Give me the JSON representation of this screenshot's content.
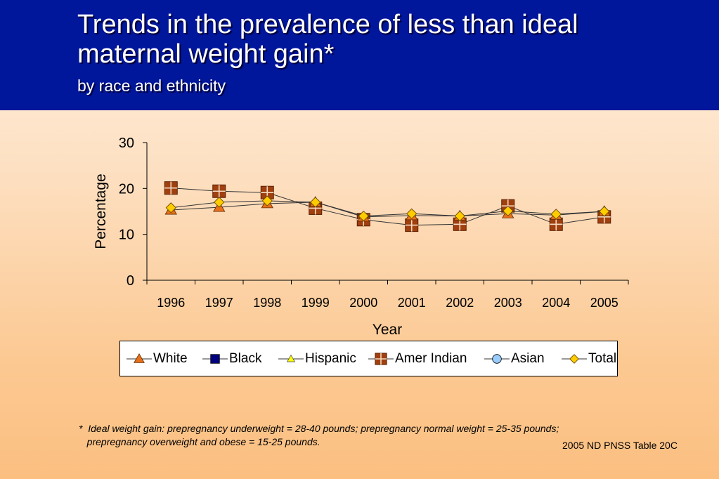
{
  "header": {
    "title": "Trends in the prevalence of less than ideal maternal weight gain*",
    "subtitle": "by race and ethnicity"
  },
  "chart_data": {
    "type": "line",
    "title": "Trends in the prevalence of less than ideal maternal weight gain*",
    "subtitle": "by race and ethnicity",
    "xlabel": "Year",
    "ylabel": "Percentage",
    "ylim": [
      0,
      30
    ],
    "yticks": [
      "0",
      "10",
      "20",
      "30"
    ],
    "categories": [
      "1996",
      "1997",
      "1998",
      "1999",
      "2000",
      "2001",
      "2002",
      "2003",
      "2004",
      "2005"
    ],
    "legend_position": "bottom",
    "series": [
      {
        "name": "White",
        "color": "#e8701a",
        "marker": "triangle",
        "values": [
          15.3,
          15.9,
          16.7,
          17.0,
          13.8,
          14.1,
          14.0,
          14.5,
          14.2,
          15.0
        ]
      },
      {
        "name": "Black",
        "color": "#000080",
        "marker": "square",
        "values": [
          null,
          null,
          null,
          null,
          null,
          null,
          null,
          null,
          null,
          null
        ]
      },
      {
        "name": "Hispanic",
        "color": "#ffff00",
        "marker": "small-triangle",
        "values": [
          null,
          null,
          null,
          null,
          null,
          null,
          null,
          null,
          null,
          null
        ]
      },
      {
        "name": "Amer Indian",
        "color": "#a0400f",
        "marker": "square-cross",
        "values": [
          20.1,
          19.4,
          19.1,
          15.7,
          13.2,
          12.0,
          12.2,
          16.2,
          12.2,
          13.8
        ]
      },
      {
        "name": "Asian",
        "color": "#99ccff",
        "marker": "circle",
        "values": [
          null,
          null,
          null,
          null,
          null,
          null,
          null,
          null,
          null,
          null
        ]
      },
      {
        "name": "Total",
        "color": "#ffcc00",
        "marker": "diamond",
        "values": [
          15.8,
          17.0,
          17.3,
          17.0,
          14.0,
          14.5,
          14.0,
          15.1,
          14.4,
          15.0
        ]
      }
    ]
  },
  "footnote": {
    "line1": "*  Ideal weight gain: prepregnancy underweight = 28-40 pounds; prepregnancy normal weight = 25-35 pounds;",
    "line2": "   prepregnancy overweight and obese = 15-25 pounds."
  },
  "source": "2005 ND PNSS Table 20C"
}
